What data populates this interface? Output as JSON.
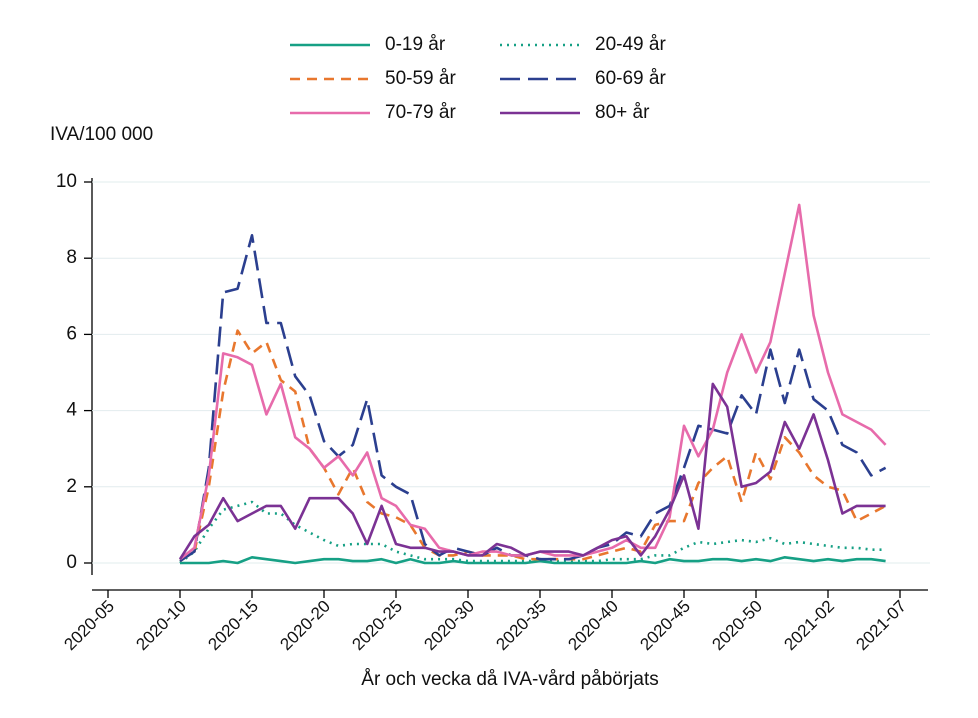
{
  "chart_data": {
    "type": "line",
    "ylabel": "IVA/100 000",
    "xlabel": "År och vecka då IVA-vård påbörjats",
    "categories": [
      "2020-05",
      null,
      null,
      null,
      null,
      "2020-10",
      null,
      null,
      null,
      null,
      "2020-15",
      null,
      null,
      null,
      null,
      "2020-20",
      null,
      null,
      null,
      null,
      "2020-25",
      null,
      null,
      null,
      null,
      "2020-30",
      null,
      null,
      null,
      null,
      "2020-35",
      null,
      null,
      null,
      null,
      "2020-40",
      null,
      null,
      null,
      null,
      "2020-45",
      null,
      null,
      null,
      null,
      "2020-50",
      null,
      null,
      null,
      null,
      "2021-02",
      null,
      null,
      null,
      null,
      "2021-07"
    ],
    "ylim": [
      0,
      10
    ],
    "yticks": [
      0,
      2,
      4,
      6,
      8,
      10
    ],
    "grid": true,
    "series": [
      {
        "name": "0-19 år",
        "color": "#16a085",
        "dash": "solid",
        "values": [
          null,
          null,
          null,
          null,
          null,
          0,
          0,
          0,
          0.05,
          0,
          0.15,
          0.1,
          0.05,
          0,
          0.05,
          0.1,
          0.1,
          0.05,
          0.05,
          0.1,
          0,
          0.1,
          0,
          0,
          0.05,
          0,
          0,
          0,
          0,
          0,
          0.05,
          0,
          0,
          0,
          0,
          0,
          0,
          0.05,
          0,
          0.1,
          0.05,
          0.05,
          0.1,
          0.1,
          0.05,
          0.1,
          0.05,
          0.15,
          0.1,
          0.05,
          0.1,
          0.05,
          0.1,
          0.1,
          0.05,
          null
        ]
      },
      {
        "name": "20-49 år",
        "color": "#16a085",
        "dash": "dotted",
        "values": [
          null,
          null,
          null,
          null,
          null,
          0,
          0.3,
          0.9,
          1.4,
          1.5,
          1.6,
          1.3,
          1.3,
          1.0,
          0.8,
          0.6,
          0.45,
          0.5,
          0.5,
          0.5,
          0.3,
          0.2,
          0.1,
          0.1,
          0.1,
          0.05,
          0.05,
          0.05,
          0.05,
          0.05,
          0.05,
          0.05,
          0.05,
          0.05,
          0.05,
          0.1,
          0.1,
          0.1,
          0.2,
          0.2,
          0.4,
          0.55,
          0.5,
          0.55,
          0.6,
          0.55,
          0.65,
          0.5,
          0.55,
          0.5,
          0.45,
          0.4,
          0.4,
          0.35,
          0.35,
          null
        ]
      },
      {
        "name": "50-59 år",
        "color": "#e8772e",
        "dash": "dashed",
        "values": [
          null,
          null,
          null,
          null,
          null,
          0.05,
          0.3,
          2.0,
          4.5,
          6.1,
          5.5,
          5.8,
          4.8,
          4.5,
          3.0,
          2.5,
          1.8,
          2.5,
          1.6,
          1.3,
          1.2,
          1.0,
          0.4,
          0.2,
          0.2,
          0.3,
          0.2,
          0.2,
          0.2,
          0.1,
          0.1,
          0.1,
          0.1,
          0.1,
          0.2,
          0.3,
          0.4,
          0.3,
          1.0,
          1.1,
          1.1,
          2.1,
          2.5,
          2.8,
          1.6,
          2.9,
          2.2,
          3.3,
          2.9,
          2.3,
          2.0,
          1.9,
          1.1,
          1.3,
          1.5,
          null
        ]
      },
      {
        "name": "60-69 år",
        "color": "#2b3f8f",
        "dash": "longdash",
        "values": [
          null,
          null,
          null,
          null,
          null,
          0.05,
          0.3,
          2.5,
          7.1,
          7.2,
          8.6,
          6.3,
          6.3,
          4.9,
          4.4,
          3.2,
          2.8,
          3.1,
          4.3,
          2.3,
          2.0,
          1.8,
          0.5,
          0.2,
          0.4,
          0.3,
          0.2,
          0.4,
          0.2,
          0.2,
          0.1,
          0.1,
          0.1,
          0.2,
          0.4,
          0.5,
          0.8,
          0.7,
          1.3,
          1.5,
          2.5,
          3.6,
          3.5,
          3.4,
          4.4,
          3.9,
          5.6,
          4.2,
          5.6,
          4.3,
          4.0,
          3.1,
          2.9,
          2.3,
          2.5,
          null
        ]
      },
      {
        "name": "70-79 år",
        "color": "#e76bab",
        "dash": "solid",
        "values": [
          null,
          null,
          null,
          null,
          null,
          0.1,
          0.4,
          2.3,
          5.5,
          5.4,
          5.2,
          3.9,
          4.7,
          3.3,
          3.0,
          2.5,
          2.8,
          2.3,
          2.9,
          1.7,
          1.5,
          1.0,
          0.9,
          0.4,
          0.3,
          0.2,
          0.3,
          0.3,
          0.2,
          0.2,
          0.3,
          0.2,
          0.2,
          0.2,
          0.3,
          0.4,
          0.6,
          0.4,
          0.4,
          1.2,
          3.6,
          2.8,
          3.5,
          5.0,
          6.0,
          5.0,
          5.8,
          7.6,
          9.4,
          6.5,
          5.0,
          3.9,
          3.7,
          3.5,
          3.1,
          null
        ]
      },
      {
        "name": "80+ år",
        "color": "#7b3294",
        "dash": "solid",
        "values": [
          null,
          null,
          null,
          null,
          null,
          0.1,
          0.7,
          1.0,
          1.7,
          1.1,
          1.3,
          1.5,
          1.5,
          0.9,
          1.7,
          1.7,
          1.7,
          1.3,
          0.5,
          1.5,
          0.5,
          0.4,
          0.4,
          0.3,
          0.3,
          0.2,
          0.2,
          0.5,
          0.4,
          0.2,
          0.3,
          0.3,
          0.3,
          0.2,
          0.4,
          0.6,
          0.7,
          0.2,
          0.7,
          1.4,
          2.3,
          0.9,
          4.7,
          4.1,
          2.0,
          2.1,
          2.4,
          3.7,
          3.0,
          3.9,
          2.7,
          1.3,
          1.5,
          1.5,
          1.5,
          null
        ]
      }
    ]
  }
}
